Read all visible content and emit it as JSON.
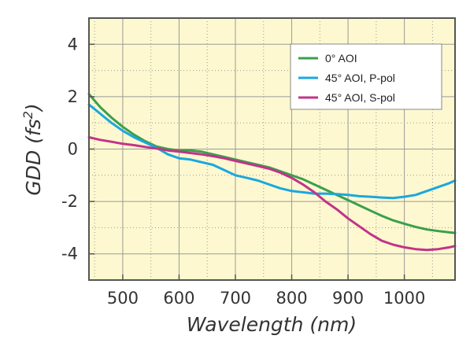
{
  "chart_data": {
    "type": "line",
    "title": "",
    "xlabel": "Wavelength (nm)",
    "ylabel_main": "GDD (fs",
    "ylabel_sup": "2",
    "ylabel_end": ")",
    "xlim": [
      440,
      1090
    ],
    "ylim": [
      -5,
      5
    ],
    "x_ticks": [
      500,
      600,
      700,
      800,
      900,
      1000
    ],
    "y_ticks": [
      4,
      2,
      0,
      -2,
      -4
    ],
    "grid": true,
    "legend_position": "top-right",
    "series": [
      {
        "name": "0° AOI",
        "color": "#3a9f4e",
        "x": [
          440,
          460,
          480,
          500,
          520,
          540,
          560,
          580,
          600,
          620,
          640,
          660,
          680,
          700,
          720,
          740,
          760,
          780,
          800,
          820,
          840,
          860,
          880,
          900,
          920,
          940,
          960,
          980,
          1000,
          1020,
          1040,
          1060,
          1080,
          1090
        ],
        "y": [
          2.1,
          1.6,
          1.2,
          0.85,
          0.55,
          0.3,
          0.1,
          0.0,
          -0.05,
          -0.05,
          -0.1,
          -0.2,
          -0.3,
          -0.4,
          -0.5,
          -0.6,
          -0.7,
          -0.85,
          -1.0,
          -1.15,
          -1.35,
          -1.55,
          -1.75,
          -1.95,
          -2.15,
          -2.35,
          -2.55,
          -2.72,
          -2.85,
          -2.97,
          -3.07,
          -3.13,
          -3.18,
          -3.2
        ]
      },
      {
        "name": "45° AOI, P-pol",
        "color": "#1aa7df",
        "x": [
          440,
          460,
          480,
          500,
          520,
          540,
          560,
          580,
          600,
          620,
          640,
          660,
          680,
          700,
          720,
          740,
          760,
          780,
          800,
          820,
          840,
          860,
          880,
          900,
          920,
          940,
          960,
          980,
          1000,
          1020,
          1040,
          1060,
          1080,
          1090
        ],
        "y": [
          1.7,
          1.35,
          1.0,
          0.7,
          0.45,
          0.25,
          0.05,
          -0.2,
          -0.35,
          -0.4,
          -0.5,
          -0.6,
          -0.8,
          -1.0,
          -1.1,
          -1.2,
          -1.35,
          -1.5,
          -1.6,
          -1.65,
          -1.7,
          -1.7,
          -1.72,
          -1.75,
          -1.8,
          -1.82,
          -1.85,
          -1.87,
          -1.82,
          -1.75,
          -1.6,
          -1.45,
          -1.3,
          -1.2
        ]
      },
      {
        "name": "45° AOI, S-pol",
        "color": "#c2338a",
        "x": [
          440,
          460,
          480,
          500,
          520,
          540,
          560,
          580,
          600,
          620,
          640,
          660,
          680,
          700,
          720,
          740,
          760,
          780,
          800,
          820,
          840,
          860,
          880,
          900,
          920,
          940,
          960,
          980,
          1000,
          1020,
          1040,
          1060,
          1080,
          1090
        ],
        "y": [
          0.45,
          0.35,
          0.28,
          0.2,
          0.15,
          0.08,
          0.02,
          -0.05,
          -0.1,
          -0.15,
          -0.2,
          -0.27,
          -0.35,
          -0.45,
          -0.55,
          -0.65,
          -0.75,
          -0.9,
          -1.1,
          -1.35,
          -1.65,
          -2.0,
          -2.3,
          -2.65,
          -2.95,
          -3.25,
          -3.5,
          -3.65,
          -3.75,
          -3.82,
          -3.85,
          -3.82,
          -3.75,
          -3.7
        ]
      }
    ]
  },
  "colors": {
    "plot_background": "#fdf8cf",
    "frame": "#555555",
    "grid": "#9a9a9a"
  }
}
